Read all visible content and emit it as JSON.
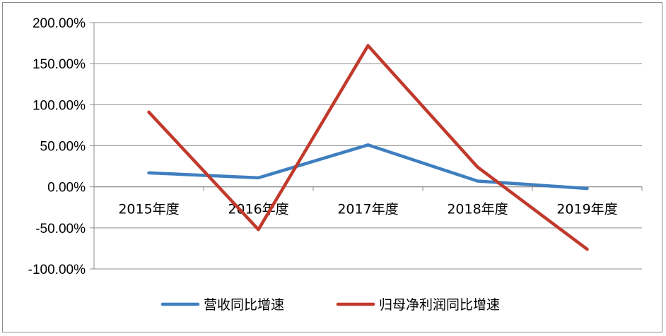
{
  "chart_data": {
    "type": "line",
    "categories": [
      "2015年度",
      "2016年度",
      "2017年度",
      "2018年度",
      "2019年度"
    ],
    "series": [
      {
        "name": "营收同比增速",
        "color": "#3f7fbf",
        "values": [
          0.17,
          0.11,
          0.51,
          0.07,
          -0.02
        ]
      },
      {
        "name": "归母净利润同比增速",
        "color": "#c0392b",
        "values": [
          0.91,
          -0.52,
          1.72,
          0.24,
          -0.76
        ]
      }
    ],
    "y_ticks": [
      "200.00%",
      "150.00%",
      "100.00%",
      "50.00%",
      "0.00%",
      "-50.00%",
      "-100.00%"
    ],
    "ylim": [
      -1.0,
      2.0
    ],
    "grid": true,
    "legend_position": "bottom"
  }
}
